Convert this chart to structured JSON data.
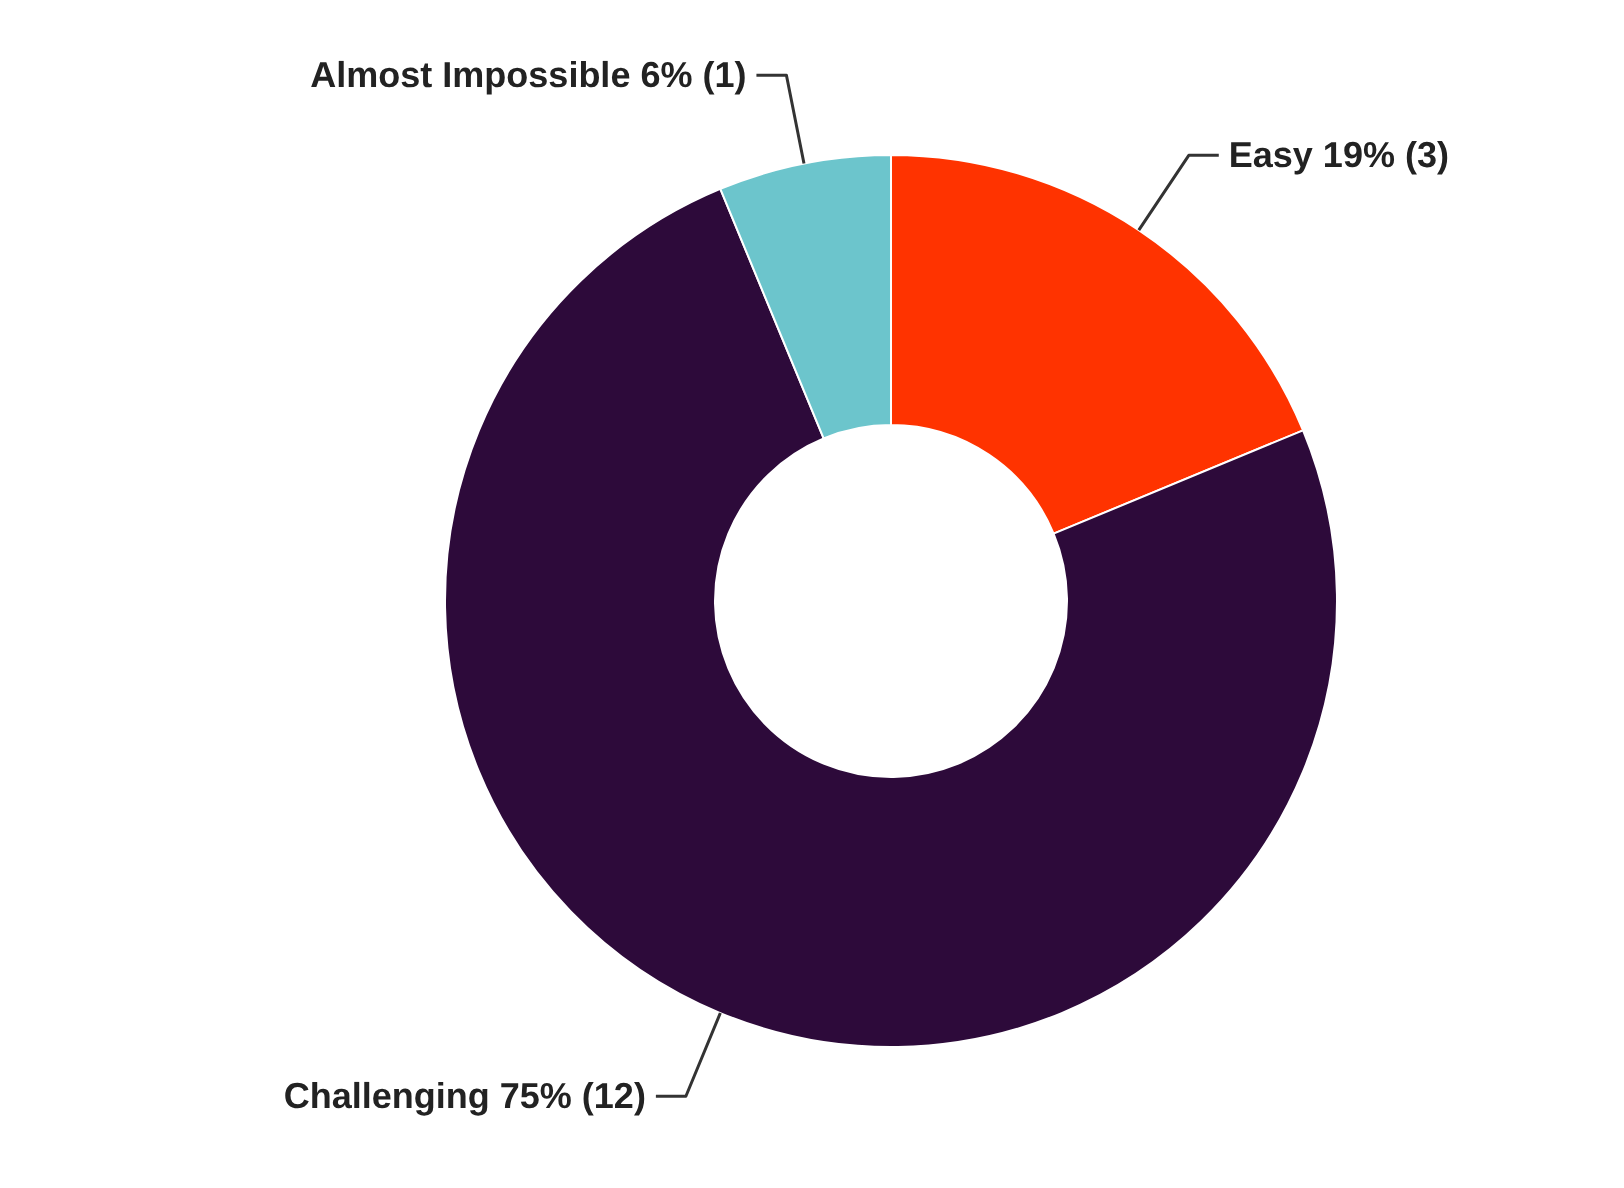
{
  "chart_data": {
    "type": "donut",
    "categories": [
      "Easy",
      "Challenging",
      "Almost Impossible"
    ],
    "values": [
      3,
      12,
      1
    ],
    "colors": [
      "#ff3300",
      "#2d0a3a",
      "#6cc5cc"
    ],
    "value_labels": [
      "19% (3)",
      "75% (12)",
      "6% (1)"
    ]
  }
}
